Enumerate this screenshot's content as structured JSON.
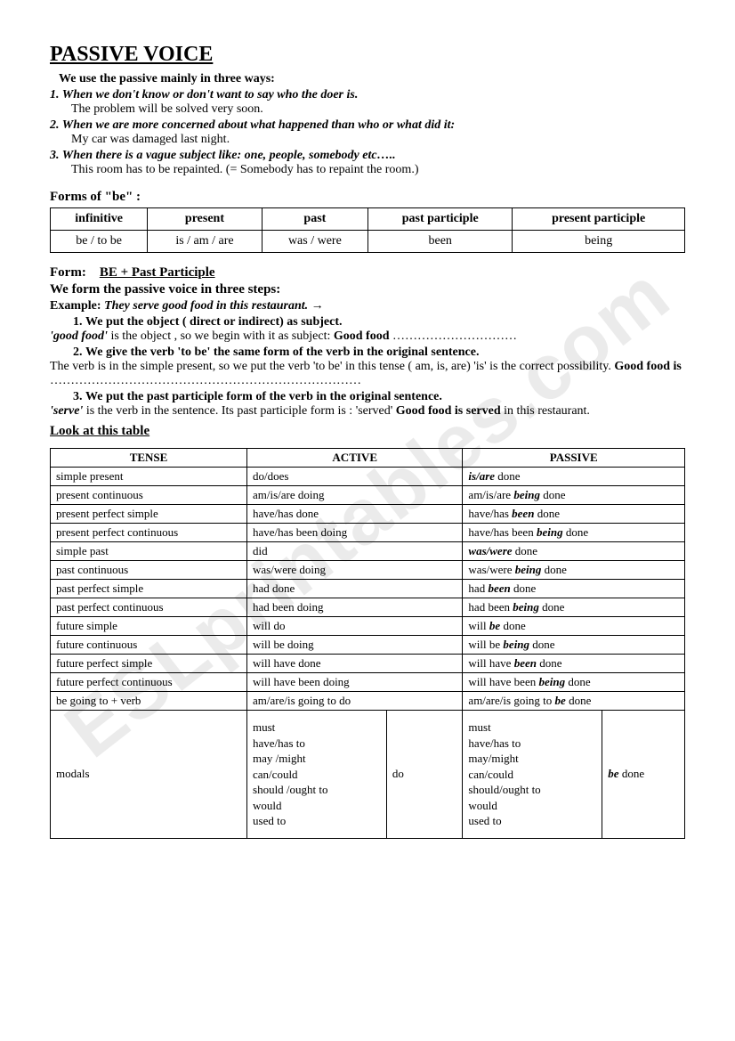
{
  "title": "PASSIVE VOICE",
  "intro": {
    "lead": "We use the passive mainly in three ways:",
    "rules": [
      {
        "rule": "1. When we don't know or don't want to say who the doer is.",
        "example": "The problem will be solved very soon."
      },
      {
        "rule": "2. When we are more concerned about what happened than who or what did it:",
        "example": "My car was damaged last night."
      },
      {
        "rule": "3. When there is a vague subject like: one, people, somebody etc…..",
        "example": "This room has to be repainted. (= Somebody has to repaint the room.)"
      }
    ]
  },
  "be_forms": {
    "label": "Forms of  \"be\" :",
    "headers": [
      "infinitive",
      "present",
      "past",
      "past participle",
      "present participle"
    ],
    "row": [
      "be / to be",
      "is / am / are",
      "was / were",
      "been",
      "being"
    ]
  },
  "form_section": {
    "prefix": "Form:",
    "formula": "BE + Past Participle",
    "steps_intro": "We form the passive voice in three steps:",
    "example_label": "Example:",
    "example_text": "They serve good food in this restaurant.",
    "arrow": "→",
    "step1": "We put the object ( direct or indirect) as subject.",
    "step1_body_a": "'good food'",
    "step1_body_b": " is the object , so we begin with it as subject:   ",
    "step1_body_c": "Good food",
    "step1_dots": " …………………………",
    "step2": "We give the verb 'to be' the same form of the verb in the original sentence.",
    "step2_body": "The verb is in the simple present, so we put the verb 'to be' in this tense ( am, is, are) 'is' is the correct possibility.  ",
    "step2_bold": "Good food is",
    "step2_dots": " …………………………………………………………………",
    "step3": "We put the past participle form of the verb in the original sentence.",
    "step3_body_a": "'serve'",
    "step3_body_b": " is the verb in the sentence. Its past participle form is : 'served' ",
    "step3_bold": "Good food is served",
    "step3_tail": " in this restaurant."
  },
  "look_label": "Look at this table",
  "tense_table": {
    "headers": [
      "TENSE",
      "ACTIVE",
      "PASSIVE"
    ],
    "rows": [
      {
        "tense": "simple  present",
        "active": "do/does",
        "passive_pre": "",
        "passive_bi": "is/are",
        "passive_post": " done"
      },
      {
        "tense": "present continuous",
        "active": "am/is/are doing",
        "passive_pre": "am/is/are ",
        "passive_bi": "being",
        "passive_post": " done"
      },
      {
        "tense": "present perfect simple",
        "active": "have/has done",
        "passive_pre": "have/has ",
        "passive_bi": "been",
        "passive_post": " done"
      },
      {
        "tense": "present perfect continuous",
        "active": "have/has been doing",
        "passive_pre": "have/has been ",
        "passive_bi": "being",
        "passive_post": " done"
      },
      {
        "tense": "simple past",
        "active": "did",
        "passive_pre": "",
        "passive_bi": "was/were",
        "passive_post": " done"
      },
      {
        "tense": "past continuous",
        "active": "was/were doing",
        "passive_pre": "was/were ",
        "passive_bi": "being",
        "passive_post": " done"
      },
      {
        "tense": "past perfect simple",
        "active": "had done",
        "passive_pre": "had ",
        "passive_bi": "been",
        "passive_post": " done"
      },
      {
        "tense": "past perfect continuous",
        "active": "had been doing",
        "passive_pre": "had been ",
        "passive_bi": "being",
        "passive_post": " done"
      },
      {
        "tense": "future simple",
        "active": "will do",
        "passive_pre": "will ",
        "passive_bi": "be",
        "passive_post": " done"
      },
      {
        "tense": "future continuous",
        "active": "will be doing",
        "passive_pre": "will be ",
        "passive_bi": "being",
        "passive_post": " done"
      },
      {
        "tense": "future perfect simple",
        "active": "will have done",
        "passive_pre": "will have ",
        "passive_bi": "been",
        "passive_post": " done"
      },
      {
        "tense": "future perfect continuous",
        "active": "will have been doing",
        "passive_pre": "will have been ",
        "passive_bi": "being",
        "passive_post": " done"
      },
      {
        "tense": "be going to + verb",
        "active": "am/are/is going to do",
        "passive_pre": "am/are/is going to ",
        "passive_bi": "be",
        "passive_post": " done"
      }
    ],
    "modals": {
      "label": "modals",
      "list": [
        "must",
        "have/has to",
        "may /might",
        "can/could",
        "should /ought to",
        "would",
        "used to"
      ],
      "list2": [
        "must",
        "have/has to",
        "may/might",
        "can/could",
        "should/ought to",
        "would",
        "used to"
      ],
      "active_verb": "do",
      "passive_bi": "be",
      "passive_post": " done"
    }
  }
}
